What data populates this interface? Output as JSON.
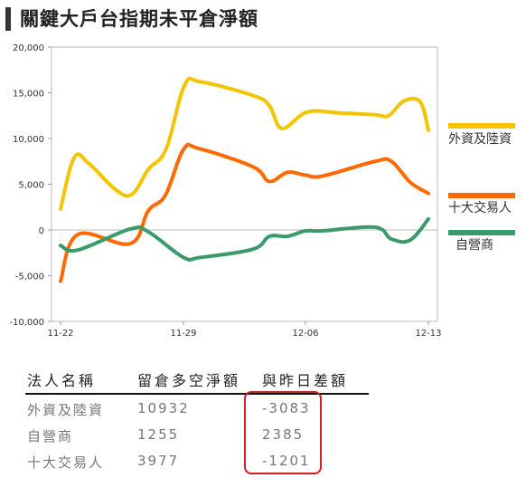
{
  "title": "關鍵大戶台指期未平倉淨額",
  "chart_data": {
    "type": "line",
    "ylim": [
      -10000,
      20000
    ],
    "yticks": [
      -10000,
      -5000,
      0,
      5000,
      10000,
      15000,
      20000
    ],
    "ytick_labels": [
      "-10,000",
      "-5,000",
      "0",
      "5,000",
      "10,000",
      "15,000",
      "20,000"
    ],
    "x_labels": [
      "11-22",
      "11-29",
      "12-06",
      "12-13"
    ],
    "series": [
      {
        "name": "外資及陸資",
        "color": "#f5c400",
        "values": [
          2300,
          7900,
          7300,
          4400,
          3900,
          6600,
          8900,
          15800,
          16200,
          14700,
          13600,
          11100,
          12900,
          12800,
          12600,
          12500,
          14100,
          14000,
          10900
        ]
      },
      {
        "name": "十大交易人",
        "color": "#ff6a00",
        "values": [
          -5600,
          -500,
          -1500,
          2100,
          3800,
          8800,
          8900,
          6900,
          5300,
          6300,
          6000,
          5900,
          7500,
          7500,
          5200,
          4000
        ]
      },
      {
        "name": "自營商",
        "color": "#3a9a6a",
        "values": [
          -1700,
          -2200,
          100,
          -200,
          -3000,
          -3000,
          -2100,
          -700,
          -700,
          -100,
          -100,
          300,
          -1000,
          -1100,
          1200
        ]
      }
    ]
  },
  "legend": [
    {
      "label": "外資及陸資",
      "color": "#f5c400"
    },
    {
      "label": "十大交易人",
      "color": "#ff6a00"
    },
    {
      "label": "自營商",
      "color": "#3a9a6a"
    }
  ],
  "table": {
    "headers": [
      "法人名稱",
      "留倉多空淨額",
      "與昨日差額"
    ],
    "rows": [
      [
        "外資及陸資",
        "10932",
        "-3083"
      ],
      [
        "自營商",
        "1255",
        "2385"
      ],
      [
        "十大交易人",
        "3977",
        "-1201"
      ]
    ]
  }
}
